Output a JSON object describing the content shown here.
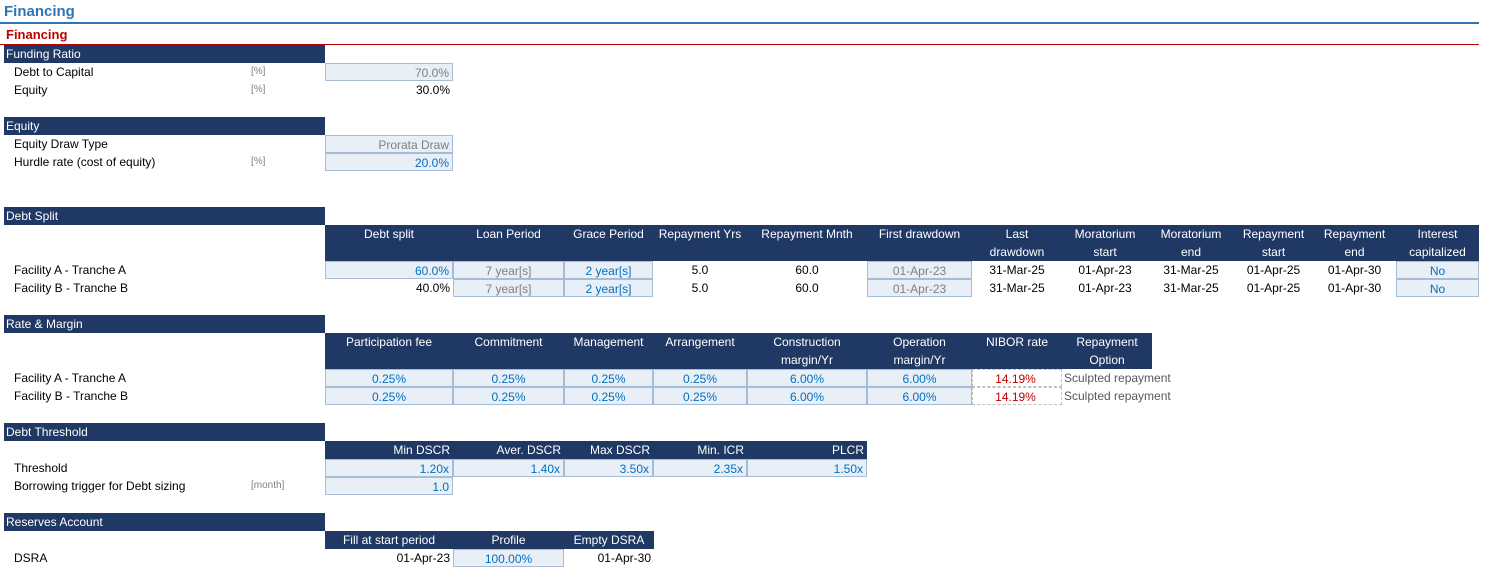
{
  "sheet_title": "Financing",
  "section_title": "Financing",
  "funding": {
    "header": "Funding Ratio",
    "rows": [
      {
        "label": "Debt to Capital",
        "unit": "[%]",
        "value": "70.0%"
      },
      {
        "label": "Equity",
        "unit": "[%]",
        "value": "30.0%"
      }
    ]
  },
  "equity": {
    "header": "Equity",
    "rows": [
      {
        "label": "Equity Draw Type",
        "unit": "",
        "value": "Prorata Draw"
      },
      {
        "label": "Hurdle rate (cost of equity)",
        "unit": "[%]",
        "value": "20.0%"
      }
    ]
  },
  "debt_split": {
    "header": "Debt Split",
    "columns": [
      {
        "l1": "Debt split",
        "l2": ""
      },
      {
        "l1": "Loan Period",
        "l2": ""
      },
      {
        "l1": "Grace Period",
        "l2": ""
      },
      {
        "l1": "Repayment Yrs",
        "l2": ""
      },
      {
        "l1": "Repayment Mnth",
        "l2": ""
      },
      {
        "l1": "First drawdown",
        "l2": ""
      },
      {
        "l1": "Last",
        "l2": "drawdown"
      },
      {
        "l1": "Moratorium",
        "l2": "start"
      },
      {
        "l1": "Moratorium",
        "l2": "end"
      },
      {
        "l1": "Repayment",
        "l2": "start"
      },
      {
        "l1": "Repayment",
        "l2": "end"
      },
      {
        "l1": "Interest",
        "l2": "capitalized"
      }
    ],
    "rows": [
      {
        "label": "Facility A - Tranche A",
        "values": [
          "60.0%",
          "7 year[s]",
          "2 year[s]",
          "5.0",
          "60.0",
          "01-Apr-23",
          "31-Mar-25",
          "01-Apr-23",
          "31-Mar-25",
          "01-Apr-25",
          "01-Apr-30",
          "No"
        ]
      },
      {
        "label": "Facility B - Tranche B",
        "values": [
          "40.0%",
          "7 year[s]",
          "2 year[s]",
          "5.0",
          "60.0",
          "01-Apr-23",
          "31-Mar-25",
          "01-Apr-23",
          "31-Mar-25",
          "01-Apr-25",
          "01-Apr-30",
          "No"
        ]
      }
    ]
  },
  "rate_margin": {
    "header": "Rate & Margin",
    "columns": [
      {
        "l1": "Participation fee",
        "l2": ""
      },
      {
        "l1": "Commitment",
        "l2": ""
      },
      {
        "l1": "Management",
        "l2": ""
      },
      {
        "l1": "Arrangement",
        "l2": ""
      },
      {
        "l1": "Construction",
        "l2": "margin/Yr"
      },
      {
        "l1": "Operation",
        "l2": "margin/Yr"
      },
      {
        "l1": "NIBOR rate",
        "l2": ""
      },
      {
        "l1": "Repayment",
        "l2": "Option"
      }
    ],
    "rows": [
      {
        "label": "Facility A - Tranche A",
        "values": [
          "0.25%",
          "0.25%",
          "0.25%",
          "0.25%",
          "6.00%",
          "6.00%",
          "14.19%",
          "Sculpted repayment"
        ]
      },
      {
        "label": "Facility B - Tranche B",
        "values": [
          "0.25%",
          "0.25%",
          "0.25%",
          "0.25%",
          "6.00%",
          "6.00%",
          "14.19%",
          "Sculpted repayment"
        ]
      }
    ]
  },
  "debt_threshold": {
    "header": "Debt Threshold",
    "columns": [
      "Min DSCR",
      "Aver. DSCR",
      "Max DSCR",
      "Min. ICR",
      "PLCR"
    ],
    "threshold_label": "Threshold",
    "threshold_values": [
      "1.20x",
      "1.40x",
      "3.50x",
      "2.35x",
      "1.50x"
    ],
    "trigger_label": "Borrowing trigger for Debt sizing",
    "trigger_unit": "[month]",
    "trigger_value": "1.0"
  },
  "reserves": {
    "header": "Reserves Account",
    "columns": [
      "Fill at start period",
      "Profile",
      "Empty DSRA"
    ],
    "row_label": "DSRA",
    "values": [
      "01-Apr-23",
      "100.00%",
      "01-Apr-30"
    ]
  }
}
